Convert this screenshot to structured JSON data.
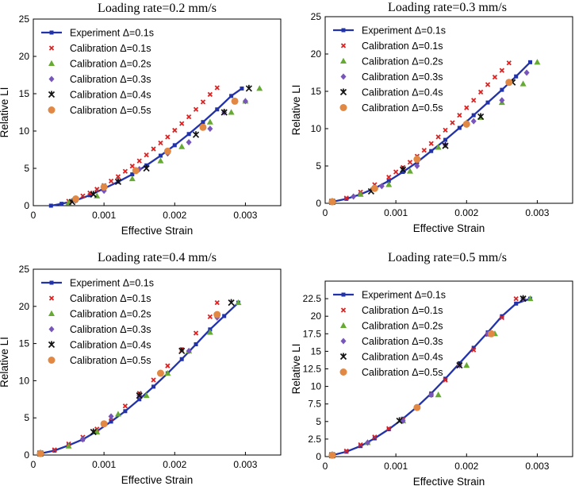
{
  "chart_data": [
    {
      "type": "scatter",
      "title": "Loading rate=0.2 mm/s",
      "xlabel": "Effective Strain",
      "ylabel": "Relative LI",
      "xlim": [
        0,
        0.0035
      ],
      "ylim": [
        0,
        25
      ],
      "xticks": [
        "0",
        "0.001",
        "0.002",
        "0.003"
      ],
      "xtick_values": [
        0,
        0.001,
        0.002,
        0.003
      ],
      "yticks": [
        "0",
        "5",
        "10",
        "15",
        "20",
        "25"
      ],
      "ytick_values": [
        0,
        5,
        10,
        15,
        20,
        25
      ],
      "legend_position": "top-left",
      "series": [
        {
          "name": "Experiment Δ=0.1s",
          "style": "line-square",
          "color": "#2233aa",
          "x": [
            0.00025,
            0.0004,
            0.0006,
            0.0008,
            0.001,
            0.0012,
            0.0014,
            0.0016,
            0.0018,
            0.002,
            0.0022,
            0.0024,
            0.0026,
            0.0028,
            0.00295
          ],
          "y": [
            0,
            0.25,
            0.7,
            1.4,
            2.3,
            3.2,
            4.2,
            5.4,
            6.7,
            8.1,
            9.6,
            11.2,
            12.9,
            14.7,
            15.7
          ]
        },
        {
          "name": "Calibration Δ=0.1s",
          "style": "x",
          "color": "#dd2222",
          "x": [
            0.0005,
            0.0006,
            0.0007,
            0.0008,
            0.0009,
            0.001,
            0.0011,
            0.0012,
            0.0013,
            0.0014,
            0.0015,
            0.0016,
            0.0017,
            0.0018,
            0.0019,
            0.002,
            0.0021,
            0.0022,
            0.0023,
            0.0024,
            0.0025,
            0.0026
          ],
          "y": [
            0.6,
            0.9,
            1.3,
            1.7,
            2.2,
            2.7,
            3.3,
            3.9,
            4.6,
            5.3,
            6.0,
            6.8,
            7.6,
            8.4,
            9.2,
            10.1,
            11.0,
            11.9,
            12.9,
            13.9,
            14.9,
            15.8
          ]
        },
        {
          "name": "Calibration Δ=0.2s",
          "style": "triangle",
          "color": "#66aa33",
          "x": [
            0.0005,
            0.0009,
            0.0014,
            0.0018,
            0.0021,
            0.0025,
            0.0028,
            0.003,
            0.0032
          ],
          "y": [
            0.4,
            1.3,
            3.6,
            6.0,
            7.9,
            11.2,
            12.5,
            14.0,
            15.7
          ]
        },
        {
          "name": "Calibration Δ=0.3s",
          "style": "diamond",
          "color": "#7755bb",
          "x": [
            0.0006,
            0.001,
            0.0015,
            0.0019,
            0.0022,
            0.0025,
            0.0027,
            0.003
          ],
          "y": [
            0.7,
            2.0,
            4.9,
            7.0,
            8.5,
            10.3,
            12.5,
            14.0
          ]
        },
        {
          "name": "Calibration Δ=0.4s",
          "style": "star",
          "color": "#111111",
          "x": [
            0.00055,
            0.00085,
            0.0012,
            0.0016,
            0.0023,
            0.0027,
            0.00305
          ],
          "y": [
            0.5,
            1.5,
            3.2,
            5.0,
            9.5,
            12.5,
            15.7
          ]
        },
        {
          "name": "Calibration Δ=0.5s",
          "style": "circle",
          "color": "#e08844",
          "x": [
            0.0006,
            0.001,
            0.00145,
            0.0019,
            0.0024,
            0.00285
          ],
          "y": [
            0.9,
            2.5,
            4.7,
            7.3,
            10.5,
            14.0
          ]
        }
      ]
    },
    {
      "type": "scatter",
      "title": "Loading rate=0.3 mm/s",
      "xlabel": "Effective Strain",
      "ylabel": "Relative LI",
      "xlim": [
        0,
        0.0035
      ],
      "ylim": [
        0,
        25
      ],
      "xticks": [
        "0",
        "0.001",
        "0.002",
        "0.003"
      ],
      "xtick_values": [
        0,
        0.001,
        0.002,
        0.003
      ],
      "yticks": [
        "0",
        "5",
        "10",
        "15",
        "20",
        "25"
      ],
      "ytick_values": [
        0,
        5,
        10,
        15,
        20,
        25
      ],
      "legend_position": "top-left",
      "series": [
        {
          "name": "Experiment Δ=0.1s",
          "style": "line-square",
          "color": "#2233aa",
          "x": [
            0.0001,
            0.0003,
            0.0005,
            0.0007,
            0.0009,
            0.0011,
            0.0013,
            0.0015,
            0.0017,
            0.0019,
            0.0021,
            0.0023,
            0.0025,
            0.0027,
            0.0029
          ],
          "y": [
            0.2,
            0.6,
            1.2,
            2.0,
            3.0,
            4.2,
            5.5,
            7.0,
            8.5,
            10.1,
            11.8,
            13.5,
            15.2,
            17.0,
            18.9
          ]
        },
        {
          "name": "Calibration Δ=0.1s",
          "style": "x",
          "color": "#dd2222",
          "x": [
            0.0001,
            0.0003,
            0.0005,
            0.0007,
            0.0009,
            0.001,
            0.0011,
            0.0012,
            0.0013,
            0.0014,
            0.0015,
            0.0016,
            0.0017,
            0.0018,
            0.0019,
            0.002,
            0.0021,
            0.0022,
            0.0023,
            0.0024,
            0.0025,
            0.0026
          ],
          "y": [
            0.2,
            0.7,
            1.5,
            2.5,
            3.5,
            4.2,
            4.8,
            5.5,
            6.3,
            7.1,
            8.0,
            8.9,
            9.8,
            10.8,
            11.8,
            12.8,
            13.8,
            14.9,
            15.9,
            16.9,
            17.8,
            18.8
          ]
        },
        {
          "name": "Calibration Δ=0.2s",
          "style": "triangle",
          "color": "#66aa33",
          "x": [
            0.0001,
            0.0005,
            0.0009,
            0.0012,
            0.0016,
            0.002,
            0.0022,
            0.0025,
            0.0028,
            0.003
          ],
          "y": [
            0.2,
            1.2,
            2.5,
            4.3,
            7.5,
            10.8,
            11.5,
            13.5,
            16.0,
            18.9
          ]
        },
        {
          "name": "Calibration Δ=0.3s",
          "style": "diamond",
          "color": "#7755bb",
          "x": [
            0.0001,
            0.0004,
            0.0008,
            0.0013,
            0.0017,
            0.0021,
            0.0025,
            0.00285
          ],
          "y": [
            0.2,
            0.9,
            2.3,
            5.0,
            7.8,
            11.0,
            13.8,
            17.5
          ]
        },
        {
          "name": "Calibration Δ=0.4s",
          "style": "star",
          "color": "#111111",
          "x": [
            0.0001,
            0.00065,
            0.0011,
            0.0017,
            0.0022,
            0.00265
          ],
          "y": [
            0.2,
            1.6,
            4.5,
            7.7,
            11.6,
            16.2
          ]
        },
        {
          "name": "Calibration Δ=0.5s",
          "style": "circle",
          "color": "#e08844",
          "x": [
            0.0001,
            0.0007,
            0.0013,
            0.002,
            0.0026
          ],
          "y": [
            0.2,
            2.0,
            5.9,
            10.6,
            16.2
          ]
        }
      ]
    },
    {
      "type": "scatter",
      "title": "Loading rate=0.4 mm/s",
      "xlabel": "Effective Strain",
      "ylabel": "Relative LI",
      "xlim": [
        0,
        0.0035
      ],
      "ylim": [
        0,
        25
      ],
      "xticks": [
        "0",
        "0.001",
        "0.002",
        "0.003"
      ],
      "xtick_values": [
        0,
        0.001,
        0.002,
        0.003
      ],
      "yticks": [
        "0",
        "5",
        "10",
        "15",
        "20",
        "25"
      ],
      "ytick_values": [
        0,
        5,
        10,
        15,
        20,
        25
      ],
      "legend_position": "top-left",
      "series": [
        {
          "name": "Experiment Δ=0.1s",
          "style": "line-square",
          "color": "#2233aa",
          "x": [
            0.0001,
            0.0003,
            0.0005,
            0.0007,
            0.0009,
            0.0011,
            0.0013,
            0.0015,
            0.0017,
            0.0019,
            0.0021,
            0.0023,
            0.0025,
            0.0027,
            0.0029
          ],
          "y": [
            0.2,
            0.6,
            1.3,
            2.1,
            3.2,
            4.5,
            5.9,
            7.5,
            9.2,
            11.0,
            12.9,
            14.9,
            16.9,
            18.7,
            20.5
          ]
        },
        {
          "name": "Calibration Δ=0.1s",
          "style": "x",
          "color": "#dd2222",
          "x": [
            0.0001,
            0.0003,
            0.0005,
            0.0007,
            0.0009,
            0.0011,
            0.0013,
            0.0015,
            0.0017,
            0.0019,
            0.0021,
            0.0023,
            0.0025,
            0.0026
          ],
          "y": [
            0.2,
            0.7,
            1.5,
            2.4,
            3.5,
            5.0,
            6.6,
            8.3,
            10.1,
            12.0,
            14.2,
            16.4,
            18.6,
            20.5
          ]
        },
        {
          "name": "Calibration Δ=0.2s",
          "style": "triangle",
          "color": "#66aa33",
          "x": [
            0.0001,
            0.0005,
            0.0009,
            0.0012,
            0.0016,
            0.0019,
            0.0022,
            0.0025,
            0.0029
          ],
          "y": [
            0.2,
            1.2,
            3.1,
            5.5,
            8.0,
            11.0,
            14.0,
            16.5,
            20.5
          ]
        },
        {
          "name": "Calibration Δ=0.3s",
          "style": "diamond",
          "color": "#7755bb",
          "x": [
            0.0001,
            0.0007,
            0.0011,
            0.0015,
            0.0018,
            0.0022,
            0.0026
          ],
          "y": [
            0.2,
            2.1,
            5.2,
            8.0,
            11.0,
            14.0,
            18.5
          ]
        },
        {
          "name": "Calibration Δ=0.4s",
          "style": "star",
          "color": "#111111",
          "x": [
            0.0001,
            0.00085,
            0.0015,
            0.0021,
            0.0028
          ],
          "y": [
            0.2,
            3.1,
            8.0,
            14.0,
            20.5
          ]
        },
        {
          "name": "Calibration Δ=0.5s",
          "style": "circle",
          "color": "#e08844",
          "x": [
            0.0001,
            0.001,
            0.0018,
            0.0026
          ],
          "y": [
            0.2,
            4.2,
            11.0,
            18.9
          ]
        }
      ]
    },
    {
      "type": "scatter",
      "title": "Loading rate=0.5 mm/s",
      "xlabel": "Effective Strain",
      "ylabel": "Relative LI",
      "xlim": [
        0,
        0.0035
      ],
      "ylim": [
        0,
        25
      ],
      "xticks": [
        "0",
        "0.001",
        "0.002",
        "0.003"
      ],
      "xtick_values": [
        0,
        0.001,
        0.002,
        0.003
      ],
      "yticks": [
        "0",
        "2.5",
        "5",
        "7.5",
        "10",
        "12.5",
        "15",
        "17.5",
        "20",
        "22.5"
      ],
      "ytick_values": [
        0,
        2.5,
        5,
        7.5,
        10,
        12.5,
        15,
        17.5,
        20,
        22.5
      ],
      "legend_position": "top-left",
      "series": [
        {
          "name": "Experiment Δ=0.1s",
          "style": "line-square",
          "color": "#2233aa",
          "x": [
            0.0001,
            0.0003,
            0.0005,
            0.0007,
            0.0009,
            0.0011,
            0.0013,
            0.0015,
            0.0017,
            0.0019,
            0.0021,
            0.0023,
            0.0025,
            0.0027,
            0.0029
          ],
          "y": [
            0.2,
            0.7,
            1.5,
            2.6,
            3.9,
            5.4,
            7.1,
            9.0,
            11.1,
            13.3,
            15.5,
            17.7,
            20.0,
            21.8,
            22.5
          ]
        },
        {
          "name": "Calibration Δ=0.1s",
          "style": "x",
          "color": "#dd2222",
          "x": [
            0.0001,
            0.0003,
            0.0005,
            0.0007,
            0.0009,
            0.0011,
            0.0013,
            0.0015,
            0.0017,
            0.0019,
            0.0021,
            0.0023,
            0.0025,
            0.0027
          ],
          "y": [
            0.2,
            0.8,
            1.7,
            2.8,
            4.0,
            5.3,
            6.9,
            8.8,
            10.9,
            13.0,
            15.2,
            17.4,
            19.8,
            22.5
          ]
        },
        {
          "name": "Calibration Δ=0.2s",
          "style": "triangle",
          "color": "#66aa33",
          "x": [
            0.0001,
            0.0006,
            0.0011,
            0.0016,
            0.002,
            0.0024,
            0.0029
          ],
          "y": [
            0.2,
            2.0,
            5.1,
            8.8,
            13.0,
            17.5,
            22.5
          ]
        },
        {
          "name": "Calibration Δ=0.3s",
          "style": "diamond",
          "color": "#7755bb",
          "x": [
            0.0001,
            0.0006,
            0.0011,
            0.0015,
            0.0019,
            0.0023,
            0.0028
          ],
          "y": [
            0.2,
            2.0,
            5.1,
            8.8,
            13.0,
            17.5,
            22.5
          ]
        },
        {
          "name": "Calibration Δ=0.4s",
          "style": "star",
          "color": "#111111",
          "x": [
            0.0001,
            0.00105,
            0.0019,
            0.0028
          ],
          "y": [
            0.2,
            5.1,
            13.0,
            22.5
          ]
        },
        {
          "name": "Calibration Δ=0.5s",
          "style": "circle",
          "color": "#e08844",
          "x": [
            0.0001,
            0.0013,
            0.00235
          ],
          "y": [
            0.2,
            7.0,
            17.5
          ]
        }
      ]
    }
  ]
}
